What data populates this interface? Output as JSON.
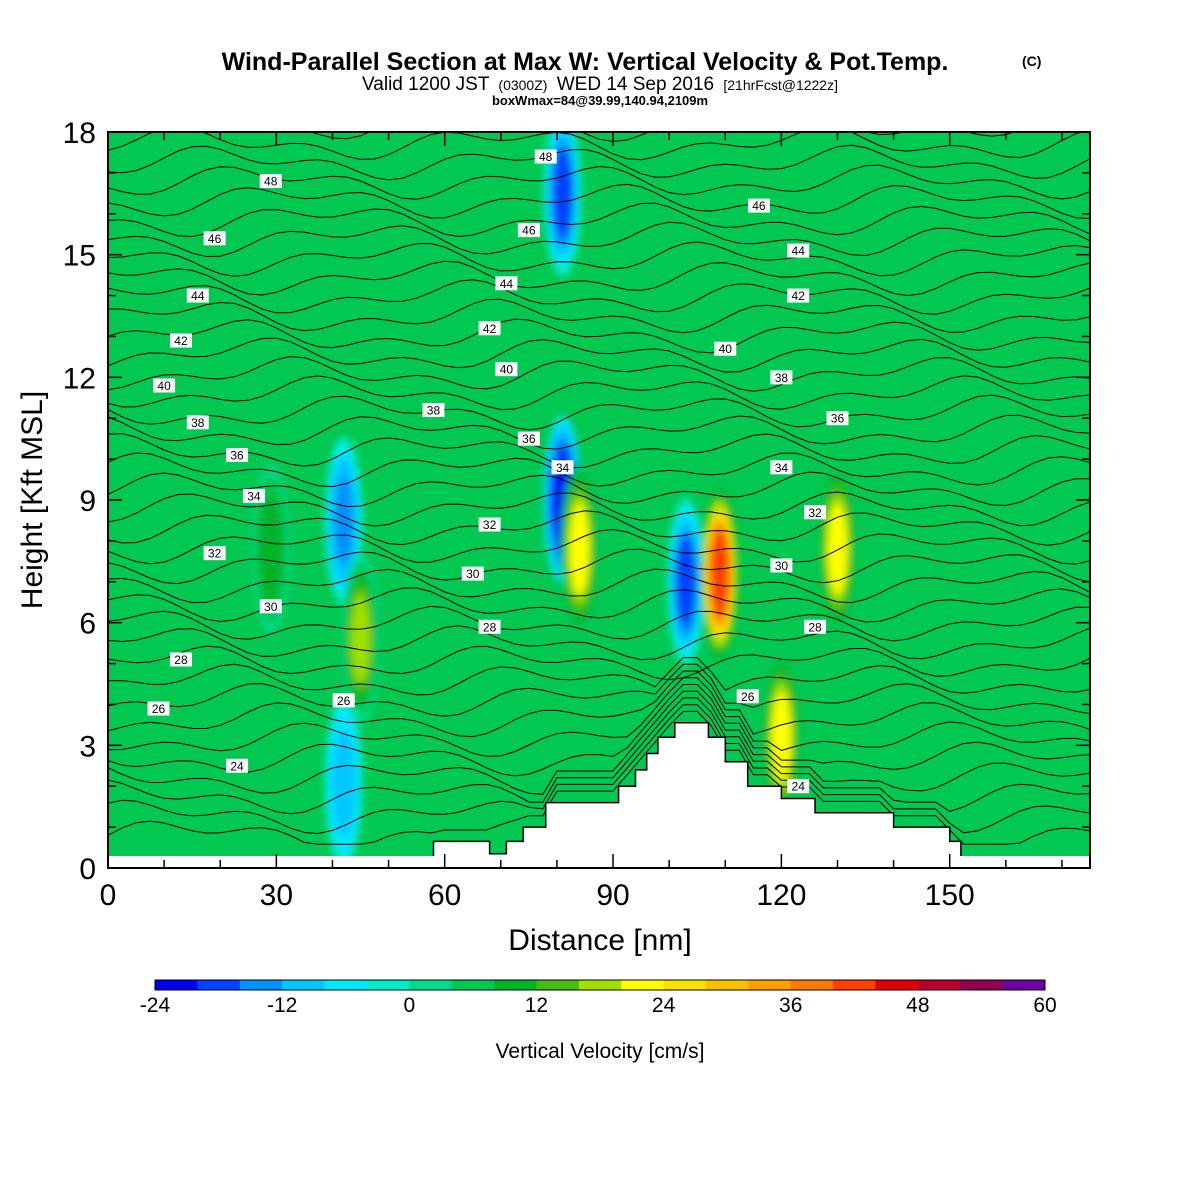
{
  "chart_data": {
    "type": "heatmap",
    "title": "Wind-Parallel Section at Max W: Vertical Velocity & Pot.Temp.",
    "title_mark": "(C)",
    "subtitle": {
      "valid": "Valid 1200 JST",
      "utc": "(0300Z)",
      "date": "WED 14 Sep 2016",
      "fcst": "[21hrFcst@1222z]"
    },
    "subtitle2": "boxWmax=84@39.99,140.94,2109m",
    "xlabel": "Distance [nm]",
    "ylabel": "Height [Kft MSL]",
    "xlim": [
      0,
      175
    ],
    "ylim": [
      0,
      18
    ],
    "x_ticks": [
      0,
      30,
      60,
      90,
      120,
      150
    ],
    "y_ticks": [
      0,
      3,
      6,
      9,
      12,
      15,
      18
    ],
    "colorbar": {
      "label": "Vertical Velocity [cm/s]",
      "min": -24,
      "max": 60,
      "ticks": [
        -24,
        -12,
        0,
        12,
        24,
        36,
        48,
        60
      ],
      "colors": [
        "#0000f0",
        "#0040ff",
        "#0090ff",
        "#00c8ff",
        "#00e8ff",
        "#00ecc8",
        "#00dc8c",
        "#00c850",
        "#00b428",
        "#44be14",
        "#a0e000",
        "#ffff00",
        "#ffe000",
        "#ffc000",
        "#ffa000",
        "#ff7800",
        "#ff4000",
        "#e00000",
        "#b80028",
        "#900050",
        "#7000a0"
      ]
    },
    "terrain_profile": [
      [
        58,
        0.3
      ],
      [
        58,
        0.65
      ],
      [
        68,
        0.65
      ],
      [
        68,
        0.35
      ],
      [
        71,
        0.35
      ],
      [
        71,
        0.65
      ],
      [
        74,
        0.65
      ],
      [
        74,
        1.0
      ],
      [
        78,
        1.0
      ],
      [
        78,
        1.6
      ],
      [
        91,
        1.6
      ],
      [
        91,
        2.0
      ],
      [
        94,
        2.0
      ],
      [
        94,
        2.4
      ],
      [
        96,
        2.4
      ],
      [
        96,
        2.8
      ],
      [
        98,
        2.8
      ],
      [
        98,
        3.2
      ],
      [
        101,
        3.2
      ],
      [
        101,
        3.55
      ],
      [
        107,
        3.55
      ],
      [
        107,
        3.2
      ],
      [
        110,
        3.2
      ],
      [
        110,
        2.6
      ],
      [
        114,
        2.6
      ],
      [
        114,
        2.0
      ],
      [
        120,
        2.0
      ],
      [
        120,
        1.7
      ],
      [
        126,
        1.7
      ],
      [
        126,
        1.35
      ],
      [
        140,
        1.35
      ],
      [
        140,
        1.0
      ],
      [
        150,
        1.0
      ],
      [
        150,
        0.65
      ],
      [
        152,
        0.65
      ],
      [
        152,
        0.3
      ]
    ],
    "vertical_velocity_features": [
      {
        "x": 42,
        "y": 8.5,
        "w": -14
      },
      {
        "x": 42,
        "y": 2.1,
        "w": -12
      },
      {
        "x": 29,
        "y": 7.8,
        "w": 10
      },
      {
        "x": 45,
        "y": 5.6,
        "w": 18
      },
      {
        "x": 81,
        "y": 16.5,
        "w": -20
      },
      {
        "x": 81,
        "y": 9.0,
        "w": -22
      },
      {
        "x": 84,
        "y": 7.8,
        "w": 22
      },
      {
        "x": 103,
        "y": 7.0,
        "w": -20
      },
      {
        "x": 109,
        "y": 7.2,
        "w": 40
      },
      {
        "x": 120,
        "y": 3.2,
        "w": 20
      },
      {
        "x": 130,
        "y": 7.8,
        "w": 22
      }
    ],
    "theta_contour_labels": [
      {
        "x": 29,
        "y": 16.8,
        "label": "48"
      },
      {
        "x": 19,
        "y": 15.4,
        "label": "46"
      },
      {
        "x": 16,
        "y": 14.0,
        "label": "44"
      },
      {
        "x": 13,
        "y": 12.9,
        "label": "42"
      },
      {
        "x": 10,
        "y": 11.8,
        "label": "40"
      },
      {
        "x": 16,
        "y": 10.9,
        "label": "38"
      },
      {
        "x": 23,
        "y": 10.1,
        "label": "36"
      },
      {
        "x": 26,
        "y": 9.1,
        "label": "34"
      },
      {
        "x": 19,
        "y": 7.7,
        "label": "32"
      },
      {
        "x": 29,
        "y": 6.4,
        "label": "30"
      },
      {
        "x": 13,
        "y": 5.1,
        "label": "28"
      },
      {
        "x": 9,
        "y": 3.9,
        "label": "26"
      },
      {
        "x": 23,
        "y": 2.5,
        "label": "24"
      },
      {
        "x": 78,
        "y": 17.4,
        "label": "48"
      },
      {
        "x": 75,
        "y": 15.6,
        "label": "46"
      },
      {
        "x": 71,
        "y": 14.3,
        "label": "44"
      },
      {
        "x": 68,
        "y": 13.2,
        "label": "42"
      },
      {
        "x": 71,
        "y": 12.2,
        "label": "40"
      },
      {
        "x": 58,
        "y": 11.2,
        "label": "38"
      },
      {
        "x": 75,
        "y": 10.5,
        "label": "36"
      },
      {
        "x": 81,
        "y": 9.8,
        "label": "34"
      },
      {
        "x": 68,
        "y": 8.4,
        "label": "32"
      },
      {
        "x": 65,
        "y": 7.2,
        "label": "30"
      },
      {
        "x": 68,
        "y": 5.9,
        "label": "28"
      },
      {
        "x": 42,
        "y": 4.1,
        "label": "26"
      },
      {
        "x": 116,
        "y": 16.2,
        "label": "46"
      },
      {
        "x": 123,
        "y": 15.1,
        "label": "44"
      },
      {
        "x": 123,
        "y": 14.0,
        "label": "42"
      },
      {
        "x": 110,
        "y": 12.7,
        "label": "40"
      },
      {
        "x": 120,
        "y": 12.0,
        "label": "38"
      },
      {
        "x": 130,
        "y": 11.0,
        "label": "36"
      },
      {
        "x": 120,
        "y": 9.8,
        "label": "34"
      },
      {
        "x": 126,
        "y": 8.7,
        "label": "32"
      },
      {
        "x": 120,
        "y": 7.4,
        "label": "30"
      },
      {
        "x": 126,
        "y": 5.9,
        "label": "28"
      },
      {
        "x": 114,
        "y": 4.2,
        "label": "26"
      },
      {
        "x": 123,
        "y": 2.0,
        "label": "24"
      }
    ]
  }
}
